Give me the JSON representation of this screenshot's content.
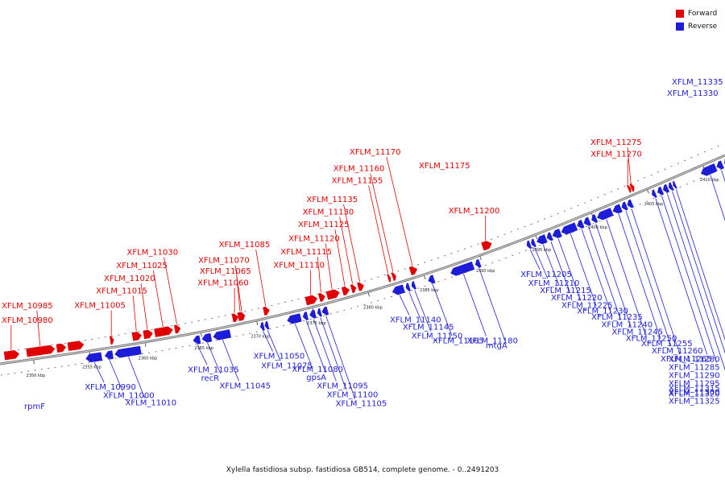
{
  "title": "Xylella fastidiosa subsp. fastidiosa GB514, complete genome. - 0..2491203",
  "legend": {
    "forward": {
      "label": "Forward",
      "color": "#e00000"
    },
    "reverse": {
      "label": "Reverse",
      "color": "#1d1dd8"
    }
  },
  "scale": {
    "range_kbp": [
      2347,
      2412
    ],
    "ticks": [
      {
        "kbp": 2350,
        "label": "2350 kbp"
      },
      {
        "kbp": 2355,
        "label": "2355 kbp"
      },
      {
        "kbp": 2360,
        "label": "2360 kbp"
      },
      {
        "kbp": 2365,
        "label": "2365 kbp"
      },
      {
        "kbp": 2370,
        "label": "2370 kbp"
      },
      {
        "kbp": 2375,
        "label": "2375 kbp"
      },
      {
        "kbp": 2380,
        "label": "2380 kbp"
      },
      {
        "kbp": 2385,
        "label": "2385 kbp"
      },
      {
        "kbp": 2390,
        "label": "2390 kbp"
      },
      {
        "kbp": 2395,
        "label": "2395 kbp"
      },
      {
        "kbp": 2400,
        "label": "2400 kbp"
      },
      {
        "kbp": 2405,
        "label": "2405 kbp"
      },
      {
        "kbp": 2410,
        "label": "2410 kbp"
      }
    ]
  },
  "forward_genes": [
    {
      "start": 2347.5,
      "end": 2348.8,
      "label": "XFLM_10980",
      "color": "#e00000"
    },
    {
      "start": 2349.5,
      "end": 2352.0,
      "label": "XFLM_10985",
      "color": "#e00000"
    },
    {
      "start": 2352.2,
      "end": 2353.0,
      "label": "",
      "color": "#e00000"
    },
    {
      "start": 2353.2,
      "end": 2354.6,
      "label": "",
      "color": "#e00000"
    },
    {
      "start": 2357.0,
      "end": 2357.3,
      "label": "XFLM_11005",
      "color": "#e00000"
    },
    {
      "start": 2359.0,
      "end": 2359.8,
      "label": "XFLM_11015",
      "color": "#e00000"
    },
    {
      "start": 2360.0,
      "end": 2360.8,
      "label": "XFLM_11020",
      "color": "#e00000"
    },
    {
      "start": 2361.0,
      "end": 2362.6,
      "label": "XFLM_11025",
      "color": "#e00000"
    },
    {
      "start": 2362.8,
      "end": 2363.3,
      "label": "XFLM_11030",
      "color": "#e00000"
    },
    {
      "start": 2368.0,
      "end": 2368.5,
      "label": "XFLM_11060",
      "color": "#e00000"
    },
    {
      "start": 2368.5,
      "end": 2369.0,
      "label": "XFLM_11065",
      "color": "#e00000"
    },
    {
      "start": 2368.7,
      "end": 2369.1,
      "label": "XFLM_11070",
      "color": "#e00000"
    },
    {
      "start": 2370.8,
      "end": 2371.3,
      "label": "XFLM_11085",
      "color": "#e00000"
    },
    {
      "start": 2374.6,
      "end": 2375.6,
      "label": "XFLM_11110",
      "color": "#e00000"
    },
    {
      "start": 2375.8,
      "end": 2376.3,
      "label": "XFLM_11115",
      "color": "#e00000"
    },
    {
      "start": 2376.5,
      "end": 2377.6,
      "label": "XFLM_11120",
      "color": "#e00000"
    },
    {
      "start": 2377.9,
      "end": 2378.5,
      "label": "XFLM_11125",
      "color": "#e00000"
    },
    {
      "start": 2378.7,
      "end": 2379.1,
      "label": "XFLM_11130",
      "color": "#e00000"
    },
    {
      "start": 2379.3,
      "end": 2379.8,
      "label": "XFLM_11135",
      "color": "#e00000"
    },
    {
      "start": 2382.0,
      "end": 2382.2,
      "label": "XFLM_11155",
      "color": "#e00000"
    },
    {
      "start": 2382.4,
      "end": 2382.7,
      "label": "XFLM_11160",
      "color": "#e00000"
    },
    {
      "start": 2384.0,
      "end": 2384.6,
      "label": "XFLM_11170",
      "color": "#e00000"
    },
    {
      "start": 2390.5,
      "end": 2391.3,
      "label": "XFLM_11200",
      "color": "#e00000"
    },
    {
      "start": 2403.6,
      "end": 2403.8,
      "label": "XFLM_11270",
      "color": "#e00000"
    },
    {
      "start": 2403.85,
      "end": 2404.1,
      "label": "XFLM_11275",
      "color": "#e00000"
    }
  ],
  "forward_labels_only": [
    "XFLM_11175"
  ],
  "reverse_genes": [
    {
      "start": 2354.6,
      "end": 2356.0,
      "label": "XFLM_10990",
      "color": "#1d1dd8"
    },
    {
      "start": 2356.3,
      "end": 2357.0,
      "label": "XFLM_11000",
      "color": "#1d1dd8"
    },
    {
      "start": 2357.2,
      "end": 2359.5,
      "label": "XFLM_11010",
      "color": "#1d1dd8"
    },
    {
      "start": 2364.2,
      "end": 2364.8,
      "label": "XFLM_11035",
      "color": "#1d1dd8"
    },
    {
      "start": 2365.0,
      "end": 2365.8,
      "label": "recR",
      "color": "#1d1dd8"
    },
    {
      "start": 2366.0,
      "end": 2367.5,
      "label": "XFLM_11045",
      "color": "#1d1dd8"
    },
    {
      "start": 2370.2,
      "end": 2370.5,
      "label": "XFLM_11050",
      "color": "#1d1dd8"
    },
    {
      "start": 2370.6,
      "end": 2370.9,
      "label": "XFLM_11075",
      "color": "#1d1dd8"
    },
    {
      "start": 2372.6,
      "end": 2373.8,
      "label": "XFLM_11080",
      "color": "#1d1dd8"
    },
    {
      "start": 2374.0,
      "end": 2374.4,
      "label": "gpsA",
      "color": "#1d1dd8"
    },
    {
      "start": 2374.6,
      "end": 2375.1,
      "label": "XFLM_11095",
      "color": "#1d1dd8"
    },
    {
      "start": 2375.3,
      "end": 2375.6,
      "label": "XFLM_11100",
      "color": "#1d1dd8"
    },
    {
      "start": 2375.7,
      "end": 2376.2,
      "label": "XFLM_11105",
      "color": "#1d1dd8"
    },
    {
      "start": 2382.0,
      "end": 2383.0,
      "label": "XFLM_11140",
      "color": "#1d1dd8"
    },
    {
      "start": 2383.2,
      "end": 2383.5,
      "label": "XFLM_11145",
      "color": "#1d1dd8"
    },
    {
      "start": 2383.7,
      "end": 2384.0,
      "label": "XFLM_11150",
      "color": "#1d1dd8"
    },
    {
      "start": 2385.2,
      "end": 2385.7,
      "label": "XFLM_11165",
      "color": "#1d1dd8"
    },
    {
      "start": 2387.2,
      "end": 2389.2,
      "label": "XFLM_11180",
      "color": "#1d1dd8"
    },
    {
      "start": 2389.4,
      "end": 2389.8,
      "label": "mtgA",
      "color": "#1d1dd8"
    },
    {
      "start": 2394.0,
      "end": 2394.3,
      "label": "XFLM_11205",
      "color": "#1d1dd8"
    },
    {
      "start": 2394.4,
      "end": 2394.7,
      "label": "XFLM_11210",
      "color": "#1d1dd8"
    },
    {
      "start": 2394.9,
      "end": 2395.7,
      "label": "XFLM_11215",
      "color": "#1d1dd8"
    },
    {
      "start": 2395.8,
      "end": 2396.2,
      "label": "XFLM_11220",
      "color": "#1d1dd8"
    },
    {
      "start": 2396.3,
      "end": 2397.0,
      "label": "XFLM_11225",
      "color": "#1d1dd8"
    },
    {
      "start": 2397.1,
      "end": 2398.4,
      "label": "XFLM_11230",
      "color": "#1d1dd8"
    },
    {
      "start": 2398.5,
      "end": 2399.0,
      "label": "XFLM_11235",
      "color": "#1d1dd8"
    },
    {
      "start": 2399.1,
      "end": 2399.6,
      "label": "XFLM_11240",
      "color": "#1d1dd8"
    },
    {
      "start": 2399.8,
      "end": 2400.2,
      "label": "XFLM_11245",
      "color": "#1d1dd8"
    },
    {
      "start": 2400.3,
      "end": 2401.6,
      "label": "XFLM_11250",
      "color": "#1d1dd8"
    },
    {
      "start": 2401.7,
      "end": 2402.4,
      "label": "XFLM_11255",
      "color": "#1d1dd8"
    },
    {
      "start": 2402.5,
      "end": 2402.9,
      "label": "XFLM_11260",
      "color": "#1d1dd8"
    },
    {
      "start": 2403.0,
      "end": 2403.4,
      "label": "XFLM_11265",
      "color": "#1d1dd8"
    },
    {
      "start": 2405.2,
      "end": 2405.5,
      "label": "XFLM_11280",
      "color": "#1d1dd8"
    },
    {
      "start": 2405.7,
      "end": 2406.1,
      "label": "XFLM_11285",
      "color": "#1d1dd8"
    },
    {
      "start": 2406.2,
      "end": 2406.6,
      "label": "XFLM_11290",
      "color": "#1d1dd8"
    },
    {
      "start": 2406.7,
      "end": 2407.0,
      "label": "XFLM_11295",
      "color": "#1d1dd8"
    },
    {
      "start": 2407.1,
      "end": 2407.3,
      "label": "XFLM_11300",
      "color": "#1d1dd8"
    },
    {
      "start": 2409.6,
      "end": 2410.9,
      "label": "XFLM_11315",
      "color": "#1d1dd8"
    },
    {
      "start": 2411.0,
      "end": 2411.5,
      "label": "XFLM_11320",
      "color": "#1d1dd8"
    },
    {
      "start": 2411.7,
      "end": 2412.0,
      "label": "XFLM_11325",
      "color": "#1d1dd8"
    }
  ],
  "reverse_labels_only": [
    "rpmF",
    "XFLM_11330",
    "XFLM_11335"
  ]
}
